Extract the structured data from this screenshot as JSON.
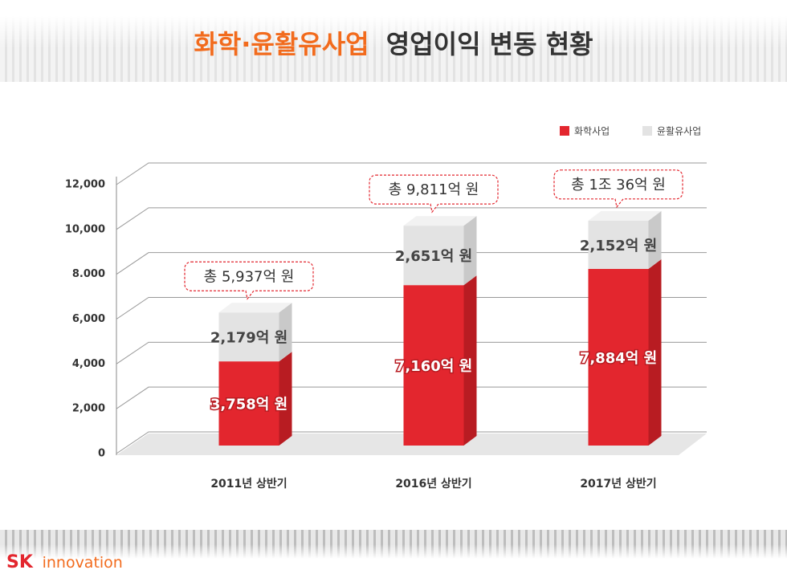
{
  "chart_data": {
    "type": "stacked-bar-3d",
    "title_highlight": "화학·윤활유사업",
    "title": "영업이익 변동 현황",
    "categories": [
      "2011년 상반기",
      "2016년 상반기",
      "2017년 상반기"
    ],
    "series": [
      {
        "name": "화학사업",
        "color": "#e3262e",
        "side_color": "#b81c22",
        "values": [
          3758,
          7160,
          7884
        ],
        "value_labels": [
          "3,758억 원",
          "7,160억 원",
          "7,884억 원"
        ]
      },
      {
        "name": "윤활유사업",
        "color": "#e3e3e3",
        "side_color": "#c9c9c9",
        "values": [
          2179,
          2651,
          2152
        ],
        "value_labels": [
          "2,179억 원",
          "2,651억 원",
          "2,152억 원"
        ]
      }
    ],
    "totals": {
      "values": [
        5937,
        9811,
        10036
      ],
      "value_labels": [
        "총 5,937억 원",
        "총 9,811억 원",
        "총 1조 36억 원"
      ]
    },
    "ylim": [
      0,
      12000
    ],
    "yticks": [
      0,
      {
        "value": 2000,
        "label": "2,000"
      },
      {
        "value": 4000,
        "label": "4,000"
      },
      {
        "value": 6000,
        "label": "6,000"
      },
      {
        "value": 8000,
        "label": "8.000"
      },
      {
        "value": 10000,
        "label": "10,000"
      },
      {
        "value": 12000,
        "label": "12,000"
      }
    ],
    "grid": true,
    "legend": "top-right"
  },
  "footer": {
    "logo_sk": "SK",
    "logo_name": "innovation"
  }
}
